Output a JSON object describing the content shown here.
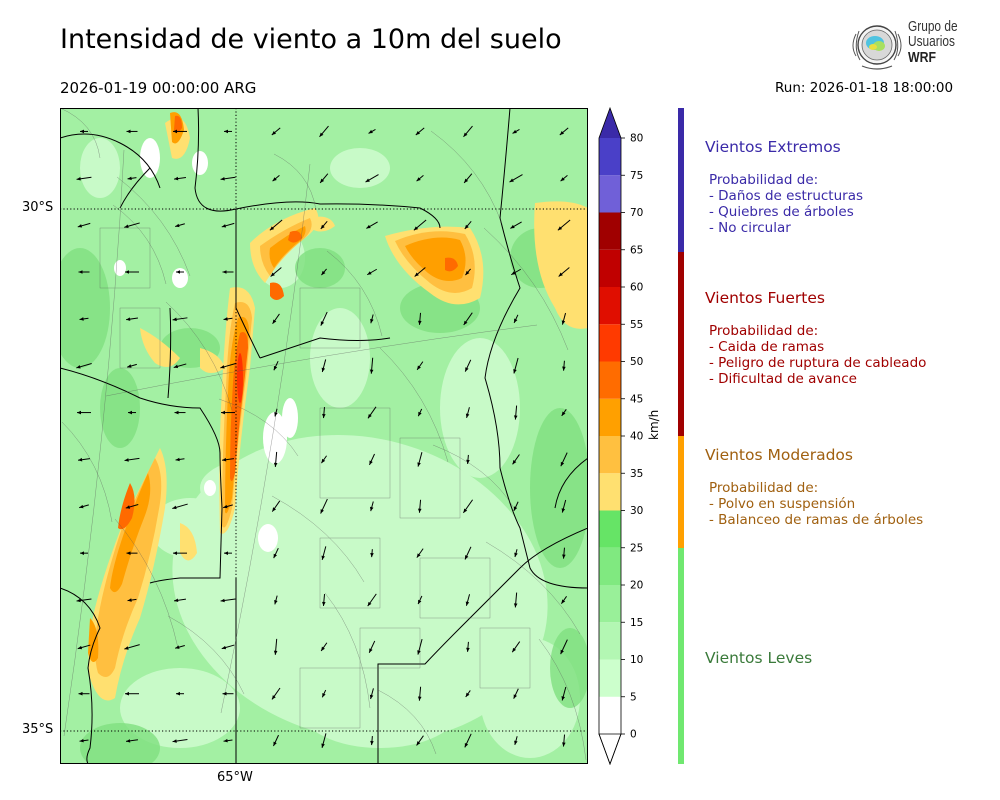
{
  "title": "Intensidad de viento a 10m del suelo",
  "valid_time": "2026-01-19 00:00:00 ARG",
  "run_time": "Run: 2026-01-18 18:00:00",
  "logo": {
    "line1": "Grupo de",
    "line2": "Usuarios",
    "line3": "WRF"
  },
  "map": {
    "lat_labels": [
      "30°S",
      "35°S"
    ],
    "lon_labels": [
      "65°W"
    ],
    "colors": {
      "bg": "#a3f0a3",
      "light": "#c8fac8",
      "white": "#ffffff",
      "green": "#7fe07f",
      "yellow": "#ffe070",
      "orange_light": "#ffbf40",
      "orange": "#ff9f00",
      "orange_dark": "#ff6a00",
      "red": "#ff3000",
      "dark_red": "#c80000",
      "border": "#000000"
    }
  },
  "colorbar": {
    "unit": "km/h",
    "ticks": [
      "0",
      "5",
      "10",
      "15",
      "20",
      "25",
      "30",
      "35",
      "40",
      "45",
      "50",
      "55",
      "60",
      "65",
      "70",
      "75",
      "80"
    ],
    "colors": [
      "#ffffff",
      "#ccffcc",
      "#b3f7b3",
      "#99f099",
      "#80e980",
      "#66e466",
      "#ffe070",
      "#ffc040",
      "#ffa000",
      "#ff6c00",
      "#ff3a00",
      "#e00e00",
      "#c00000",
      "#a00000",
      "#7060d8",
      "#4a40c8",
      "#3d2eb0"
    ],
    "under_color": "#ffffff",
    "over_color": "#3a2aa8"
  },
  "categories": [
    {
      "title": "Vientos Extremos",
      "color": "#3a2aa8",
      "text_color": "#3a2aa8",
      "heading": "Probabilidad de:",
      "items": [
        "- Daños de estructuras",
        "- Quiebres de árboles",
        "- No circular"
      ]
    },
    {
      "title": "Vientos Fuertes",
      "color": "#a00000",
      "text_color": "#a00000",
      "heading": "Probabilidad de:",
      "items": [
        "- Caida de ramas",
        "- Peligro de ruptura de cableado",
        "- Dificultad de avance"
      ]
    },
    {
      "title": "Vientos Moderados",
      "color": "#ffa000",
      "text_color": "#a06010",
      "heading": "Probabilidad de:",
      "items": [
        "- Polvo en suspensión",
        "- Balanceo de ramas de árboles"
      ]
    },
    {
      "title": "Vientos Leves",
      "color": "#70e870",
      "text_color": "#3a7a3a",
      "heading": "",
      "items": []
    }
  ]
}
